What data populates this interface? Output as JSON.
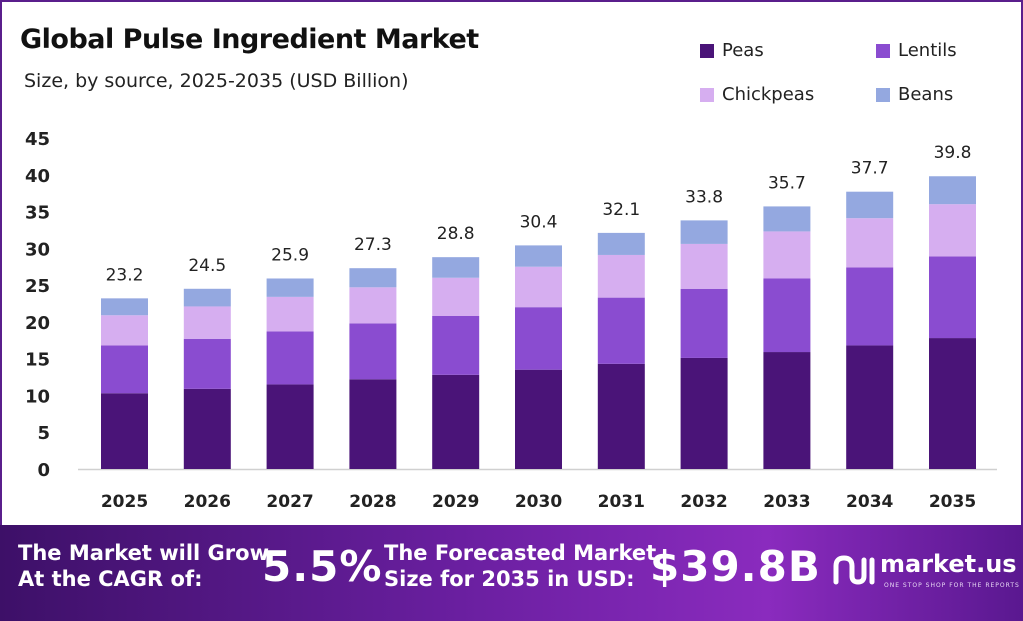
{
  "chart_data": {
    "type": "bar",
    "stacked": true,
    "title": "Global Pulse Ingredient Market",
    "subtitle": "Size, by source, 2025-2035 (USD Billion)",
    "categories": [
      "2025",
      "2026",
      "2027",
      "2028",
      "2029",
      "2030",
      "2031",
      "2032",
      "2033",
      "2034",
      "2035"
    ],
    "ylim": [
      0,
      45
    ],
    "yticks": [
      0,
      5,
      10,
      15,
      20,
      25,
      30,
      35,
      40,
      45
    ],
    "grid": false,
    "legend_position": "top-right",
    "totals": [
      "23.2",
      "24.5",
      "25.9",
      "27.3",
      "28.8",
      "30.4",
      "32.1",
      "33.8",
      "35.7",
      "37.7",
      "39.8"
    ],
    "series": [
      {
        "name": "Peas",
        "color": "#4a1478",
        "values": [
          10.3,
          10.9,
          11.5,
          12.2,
          12.8,
          13.5,
          14.3,
          15.1,
          15.9,
          16.8,
          17.8
        ]
      },
      {
        "name": "Lentils",
        "color": "#8a4cd0",
        "values": [
          6.5,
          6.8,
          7.2,
          7.6,
          8.0,
          8.5,
          9.0,
          9.4,
          10.0,
          10.6,
          11.1
        ]
      },
      {
        "name": "Chickpeas",
        "color": "#d6aef0",
        "values": [
          4.1,
          4.4,
          4.7,
          4.9,
          5.2,
          5.5,
          5.8,
          6.1,
          6.4,
          6.7,
          7.1
        ]
      },
      {
        "name": "Beans",
        "color": "#94a8e0",
        "values": [
          2.3,
          2.4,
          2.5,
          2.6,
          2.8,
          2.9,
          3.0,
          3.2,
          3.4,
          3.6,
          3.8
        ]
      }
    ]
  },
  "footer": {
    "cagr_label_line1": "The Market will Grow",
    "cagr_label_line2": "At the CAGR of:",
    "cagr_value": "5.5%",
    "forecast_label_line1": "The Forecasted Market",
    "forecast_label_line2": "Size for 2035 in USD:",
    "forecast_value": "$39.8B"
  },
  "brand": {
    "name": "market.us",
    "tagline": "ONE STOP SHOP FOR THE REPORTS",
    "icon": "market-us-logo-icon"
  }
}
